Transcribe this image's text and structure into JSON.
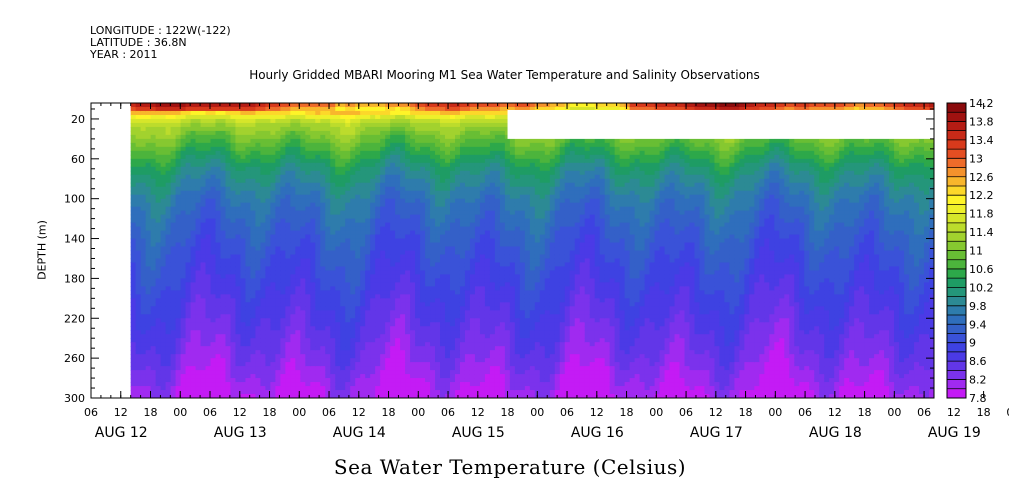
{
  "meta": {
    "longitude": "LONGITUDE : 122W(-122)",
    "latitude": "LATITUDE : 36.8N",
    "year": "YEAR : 2011"
  },
  "chart_data": {
    "type": "heatmap",
    "title": "Hourly Gridded MBARI Mooring M1 Sea Water Temperature and Salinity Observations",
    "xlabel": "Sea Water Temperature (Celsius)",
    "ylabel": "DEPTH (m)",
    "ylim": [
      300,
      4
    ],
    "yticks": [
      20,
      60,
      100,
      140,
      180,
      220,
      260,
      300
    ],
    "xlim": [
      "2011-08-12 06:00",
      "2011-08-19 08:00"
    ],
    "hour_ticks": [
      "06",
      "12",
      "18",
      "00",
      "06",
      "12",
      "18",
      "00",
      "06",
      "12",
      "18",
      "00",
      "06",
      "12",
      "18",
      "00",
      "06",
      "12",
      "18",
      "00",
      "06",
      "12",
      "18",
      "00",
      "06",
      "12",
      "18",
      "00",
      "06",
      "12",
      "18",
      "00",
      "06"
    ],
    "day_labels": [
      {
        "label": "AUG 12",
        "date": "2011-08-12"
      },
      {
        "label": "AUG 13",
        "date": "2011-08-13"
      },
      {
        "label": "AUG 14",
        "date": "2011-08-14"
      },
      {
        "label": "AUG 15",
        "date": "2011-08-15"
      },
      {
        "label": "AUG 16",
        "date": "2011-08-16"
      },
      {
        "label": "AUG 17",
        "date": "2011-08-17"
      },
      {
        "label": "AUG 18",
        "date": "2011-08-18"
      },
      {
        "label": "AUG 19",
        "date": "2011-08-19"
      }
    ],
    "colorbar": {
      "levels": [
        7.8,
        8.0,
        8.2,
        8.4,
        8.6,
        8.8,
        9.0,
        9.2,
        9.4,
        9.6,
        9.8,
        10.0,
        10.2,
        10.4,
        10.6,
        10.8,
        11.0,
        11.2,
        11.4,
        11.6,
        11.8,
        12.0,
        12.2,
        12.4,
        12.6,
        12.8,
        13.0,
        13.2,
        13.4,
        13.6,
        13.8,
        14.0,
        14.2
      ],
      "labels": [
        "7.8",
        "8.2",
        "8.6",
        "9",
        "9.4",
        "9.8",
        "10.2",
        "10.6",
        "11",
        "11.4",
        "11.8",
        "12.2",
        "12.6",
        "13",
        "13.4",
        "13.8",
        "14.2"
      ],
      "colors": [
        "#c41bf5",
        "#a02af0",
        "#7b32ec",
        "#6236e8",
        "#4b3ae6",
        "#3e42e2",
        "#3a52d8",
        "#3460c8",
        "#2f6ebc",
        "#2e7cac",
        "#2c8a94",
        "#24967a",
        "#1e9c64",
        "#2da84a",
        "#4cb43c",
        "#68be34",
        "#86c830",
        "#a2d22e",
        "#bcdc2c",
        "#d6e62a",
        "#eef02a",
        "#fef428",
        "#fcd82a",
        "#f8b62c",
        "#f4922c",
        "#ee6c2a",
        "#e44e22",
        "#d83a1c",
        "#c82a18",
        "#b41c14",
        "#a01210",
        "#8a0a0c"
      ]
    },
    "missing_data": {
      "start": "2011-08-15 18:00",
      "end": "2011-08-19 08:00",
      "depth_from": 11,
      "depth_to": 40
    },
    "data_start": "2011-08-12 14:00",
    "profile": {
      "depth_m": [
        4,
        10,
        16,
        24,
        40,
        70,
        100,
        140,
        180,
        220,
        260,
        290,
        300
      ],
      "temperature_c": [
        13.6,
        13.0,
        12.0,
        11.4,
        10.9,
        10.1,
        9.6,
        9.2,
        8.9,
        8.6,
        8.3,
        8.0,
        7.9
      ]
    }
  }
}
